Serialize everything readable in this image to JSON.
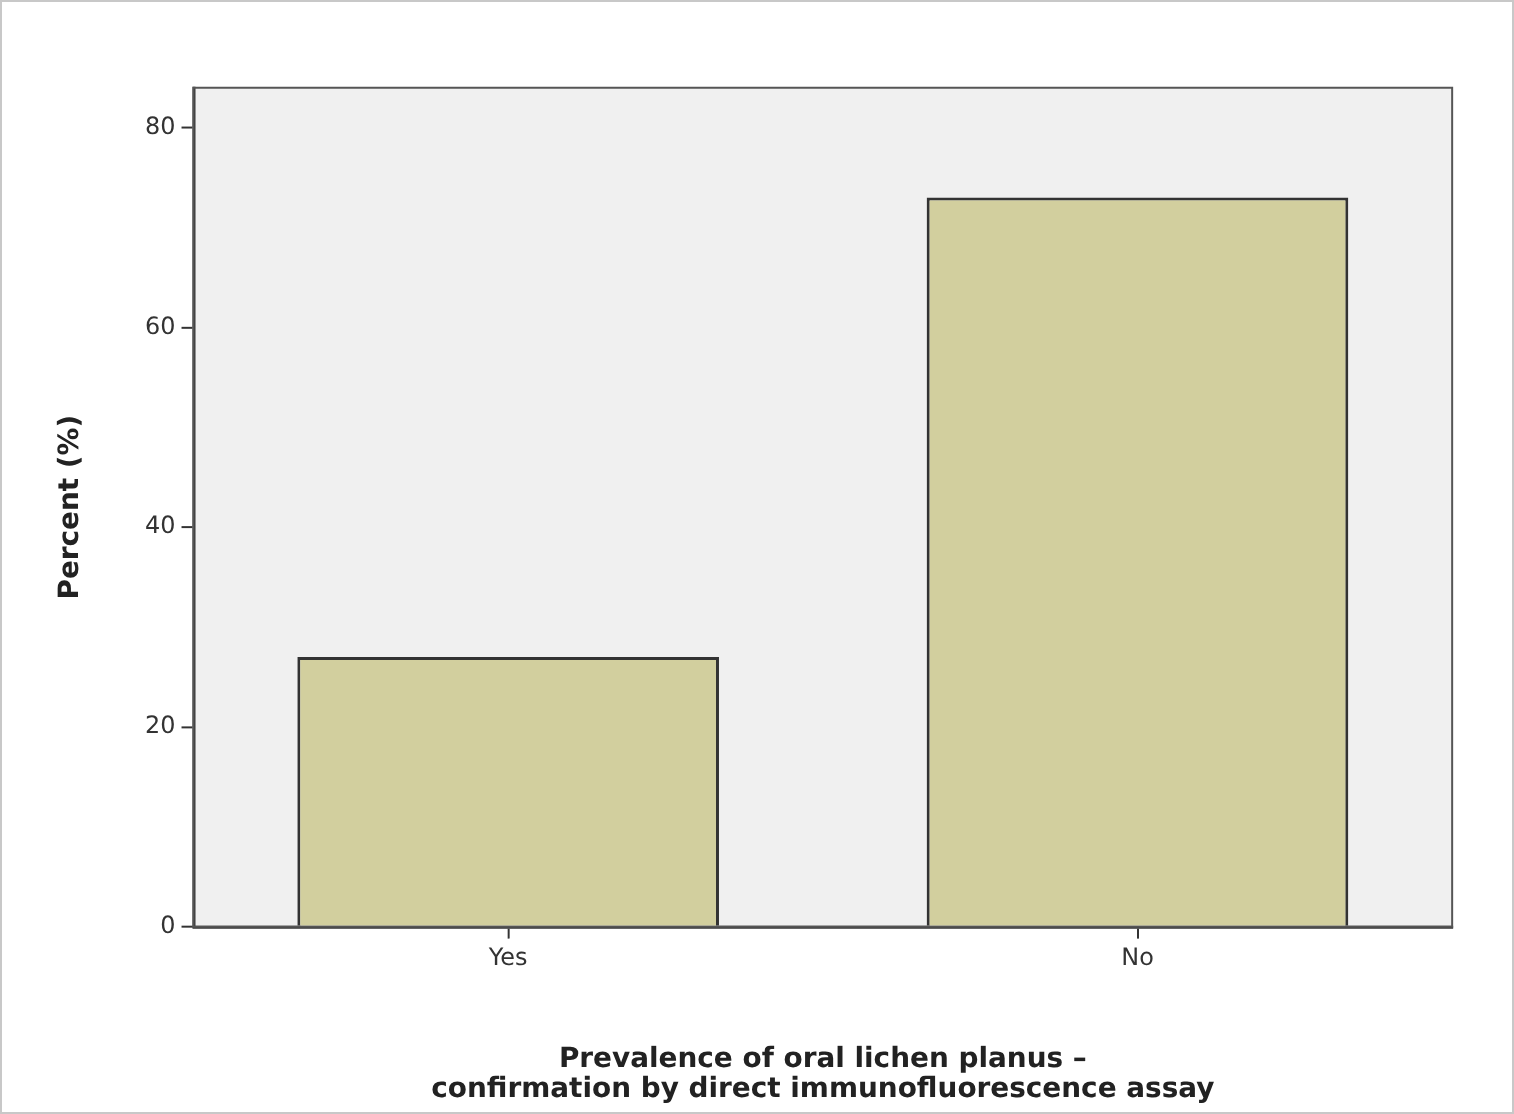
{
  "chart_data": {
    "type": "bar",
    "categories": [
      "Yes",
      "No"
    ],
    "values": [
      27,
      73
    ],
    "color": "#d2cf9e",
    "xlabel": "Prevalence of oral lichen planus –\nconfirmation by direct immunofluorescence assay",
    "ylabel": "Percent (%)",
    "ylim": [
      0,
      84
    ],
    "yticks": [
      0,
      20,
      40,
      60,
      80
    ],
    "grid": false,
    "legend": false
  }
}
